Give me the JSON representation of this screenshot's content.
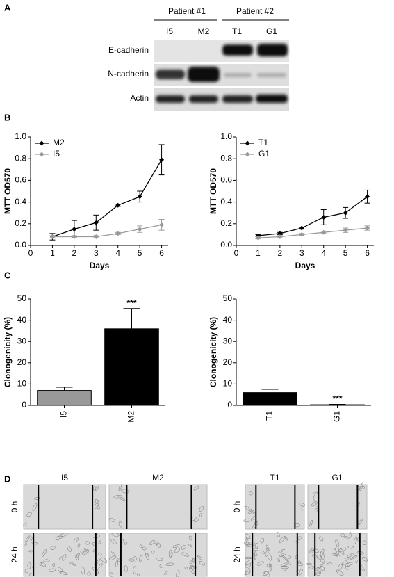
{
  "panel_labels": [
    "A",
    "B",
    "C",
    "D"
  ],
  "blot": {
    "groups": [
      {
        "label": "Patient #1",
        "lanes": [
          "I5",
          "M2"
        ]
      },
      {
        "label": "Patient #2",
        "lanes": [
          "T1",
          "G1"
        ]
      }
    ],
    "rows": [
      "E-cadherin",
      "N-cadherin",
      "Actin"
    ]
  },
  "chart_data": [
    {
      "type": "line",
      "x": [
        1,
        2,
        3,
        4,
        5,
        6
      ],
      "xlim": [
        0,
        6.3
      ],
      "xticks": [
        0,
        1,
        2,
        3,
        4,
        5,
        6
      ],
      "ylim": [
        0,
        1
      ],
      "yticks": [
        {
          "value": 0,
          "label": "0.0"
        },
        0.2,
        0.4,
        0.6,
        0.8,
        {
          "value": 1,
          "label": "1.0"
        }
      ],
      "x_label": "Days",
      "y_label": "MTT OD570",
      "legend": "top-left",
      "series": [
        {
          "name": "M2",
          "color": "#000000",
          "values": [
            0.08,
            0.15,
            0.21,
            0.37,
            0.45,
            0.79
          ],
          "errors": [
            0.03,
            0.08,
            0.07,
            0.01,
            0.05,
            0.14
          ]
        },
        {
          "name": "I5",
          "color": "#999999",
          "values": [
            0.08,
            0.08,
            0.08,
            0.11,
            0.15,
            0.19
          ],
          "errors": [
            0.01,
            0.01,
            0.01,
            0.01,
            0.03,
            0.05
          ]
        }
      ]
    },
    {
      "type": "line",
      "x": [
        1,
        2,
        3,
        4,
        5,
        6
      ],
      "xlim": [
        0,
        6.3
      ],
      "xticks": [
        0,
        1,
        2,
        3,
        4,
        5,
        6
      ],
      "ylim": [
        0,
        1
      ],
      "yticks": [
        {
          "value": 0,
          "label": "0.0"
        },
        0.2,
        0.4,
        0.6,
        0.8,
        {
          "value": 1,
          "label": "1.0"
        }
      ],
      "x_label": "Days",
      "y_label": "MTT OD570",
      "legend": "top-left",
      "series": [
        {
          "name": "T1",
          "color": "#000000",
          "values": [
            0.09,
            0.11,
            0.16,
            0.26,
            0.3,
            0.45
          ],
          "errors": [
            0.01,
            0.01,
            0.01,
            0.07,
            0.05,
            0.06
          ]
        },
        {
          "name": "G1",
          "color": "#999999",
          "values": [
            0.07,
            0.08,
            0.1,
            0.12,
            0.14,
            0.16
          ],
          "errors": [
            0.01,
            0.01,
            0.01,
            0.01,
            0.02,
            0.02
          ]
        }
      ]
    },
    {
      "type": "bar",
      "categories": [
        "I5",
        "M2"
      ],
      "values": [
        7,
        36
      ],
      "errors": [
        1.5,
        9.5
      ],
      "colors": [
        "#999999",
        "#000000"
      ],
      "ylim": [
        0,
        50
      ],
      "yticks": [
        0,
        10,
        20,
        30,
        40,
        50
      ],
      "y_label": "Clonogenicity (%)",
      "annotations": [
        {
          "category": "M2",
          "text": "***"
        }
      ]
    },
    {
      "type": "bar",
      "categories": [
        "T1",
        "G1"
      ],
      "values": [
        6,
        0.3
      ],
      "errors": [
        1.5,
        0.2
      ],
      "colors": [
        "#000000",
        "#999999"
      ],
      "ylim": [
        0,
        50
      ],
      "yticks": [
        0,
        10,
        20,
        30,
        40,
        50
      ],
      "y_label": "Clonogenicity (%)",
      "annotations": [
        {
          "category": "G1",
          "text": "***"
        }
      ]
    }
  ],
  "wound": {
    "rows": [
      "0 h",
      "24 h"
    ],
    "left_columns": [
      "I5",
      "M2"
    ],
    "right_columns": [
      "T1",
      "G1"
    ]
  }
}
